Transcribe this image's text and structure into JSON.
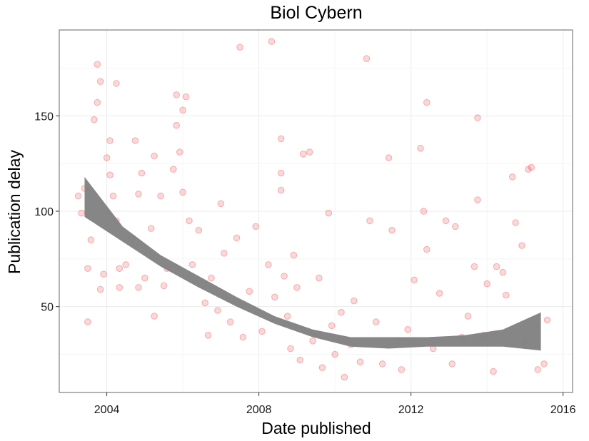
{
  "chart_data": {
    "type": "scatter",
    "title": "Biol Cybern",
    "xlabel": "Date published",
    "ylabel": "Publication delay",
    "x_ticks": [
      "2004",
      "2008",
      "2012",
      "2016"
    ],
    "y_ticks": [
      50,
      100,
      150
    ],
    "xlim": [
      "2002-10-01",
      "2016-04-01"
    ],
    "ylim": [
      5,
      195
    ],
    "grid": true,
    "point_color": "#e41a1c",
    "smooth_band_color": "#808080",
    "smooth_fit": {
      "x": [
        "2003-06",
        "2004-06",
        "2005-06",
        "2006-06",
        "2007-06",
        "2008-06",
        "2009-06",
        "2010-06",
        "2011-06",
        "2012-06",
        "2013-06",
        "2014-06",
        "2015-06"
      ],
      "lower": [
        97,
        84,
        71,
        60,
        50,
        41,
        34,
        29,
        28,
        29,
        29,
        29,
        27
      ],
      "upper": [
        118,
        92,
        77,
        66,
        55,
        45,
        38,
        34,
        34,
        34,
        35,
        38,
        47
      ]
    },
    "points": [
      [
        "2003-04",
        108
      ],
      [
        "2003-05",
        99
      ],
      [
        "2003-06",
        112
      ],
      [
        "2003-07",
        70
      ],
      [
        "2003-07",
        42
      ],
      [
        "2003-08",
        85
      ],
      [
        "2003-09",
        148
      ],
      [
        "2003-10",
        177
      ],
      [
        "2003-10",
        157
      ],
      [
        "2003-11",
        168
      ],
      [
        "2003-11",
        59
      ],
      [
        "2003-12",
        67
      ],
      [
        "2004-01",
        128
      ],
      [
        "2004-02",
        137
      ],
      [
        "2004-02",
        119
      ],
      [
        "2004-03",
        108
      ],
      [
        "2004-04",
        167
      ],
      [
        "2004-04",
        95
      ],
      [
        "2004-05",
        70
      ],
      [
        "2004-05",
        60
      ],
      [
        "2004-07",
        72
      ],
      [
        "2004-09",
        86
      ],
      [
        "2004-10",
        137
      ],
      [
        "2004-11",
        109
      ],
      [
        "2004-12",
        120
      ],
      [
        "2004-11",
        60
      ],
      [
        "2005-01",
        65
      ],
      [
        "2005-03",
        91
      ],
      [
        "2005-04",
        129
      ],
      [
        "2005-04",
        45
      ],
      [
        "2005-06",
        108
      ],
      [
        "2005-07",
        61
      ],
      [
        "2005-08",
        70
      ],
      [
        "2005-10",
        122
      ],
      [
        "2005-11",
        145
      ],
      [
        "2005-11",
        161
      ],
      [
        "2005-12",
        131
      ],
      [
        "2006-01",
        110
      ],
      [
        "2006-01",
        153
      ],
      [
        "2006-02",
        160
      ],
      [
        "2006-03",
        95
      ],
      [
        "2006-04",
        72
      ],
      [
        "2006-06",
        90
      ],
      [
        "2006-08",
        52
      ],
      [
        "2006-09",
        35
      ],
      [
        "2006-10",
        65
      ],
      [
        "2006-12",
        48
      ],
      [
        "2007-01",
        104
      ],
      [
        "2007-02",
        78
      ],
      [
        "2007-04",
        42
      ],
      [
        "2007-06",
        86
      ],
      [
        "2007-07",
        186
      ],
      [
        "2007-08",
        34
      ],
      [
        "2007-10",
        58
      ],
      [
        "2007-12",
        92
      ],
      [
        "2008-02",
        37
      ],
      [
        "2008-04",
        72
      ],
      [
        "2008-05",
        189
      ],
      [
        "2008-06",
        55
      ],
      [
        "2008-08",
        138
      ],
      [
        "2008-08",
        120
      ],
      [
        "2008-08",
        111
      ],
      [
        "2008-09",
        66
      ],
      [
        "2008-10",
        45
      ],
      [
        "2008-11",
        28
      ],
      [
        "2008-12",
        77
      ],
      [
        "2009-01",
        60
      ],
      [
        "2009-02",
        22
      ],
      [
        "2009-03",
        130
      ],
      [
        "2009-05",
        131
      ],
      [
        "2009-06",
        32
      ],
      [
        "2009-08",
        65
      ],
      [
        "2009-09",
        18
      ],
      [
        "2009-11",
        99
      ],
      [
        "2009-12",
        40
      ],
      [
        "2010-01",
        25
      ],
      [
        "2010-03",
        47
      ],
      [
        "2010-04",
        13
      ],
      [
        "2010-06",
        30
      ],
      [
        "2010-07",
        53
      ],
      [
        "2010-09",
        21
      ],
      [
        "2010-11",
        180
      ],
      [
        "2010-12",
        95
      ],
      [
        "2011-02",
        42
      ],
      [
        "2011-04",
        20
      ],
      [
        "2011-06",
        128
      ],
      [
        "2011-07",
        90
      ],
      [
        "2011-09",
        32
      ],
      [
        "2011-10",
        17
      ],
      [
        "2011-12",
        38
      ],
      [
        "2012-02",
        64
      ],
      [
        "2012-04",
        133
      ],
      [
        "2012-05",
        100
      ],
      [
        "2012-06",
        80
      ],
      [
        "2012-06",
        157
      ],
      [
        "2012-08",
        28
      ],
      [
        "2012-10",
        57
      ],
      [
        "2012-12",
        95
      ],
      [
        "2013-02",
        20
      ],
      [
        "2013-03",
        92
      ],
      [
        "2013-05",
        34
      ],
      [
        "2013-07",
        45
      ],
      [
        "2013-09",
        71
      ],
      [
        "2013-10",
        149
      ],
      [
        "2013-10",
        106
      ],
      [
        "2013-12",
        35
      ],
      [
        "2014-01",
        62
      ],
      [
        "2014-03",
        16
      ],
      [
        "2014-04",
        71
      ],
      [
        "2014-06",
        68
      ],
      [
        "2014-07",
        56
      ],
      [
        "2014-09",
        118
      ],
      [
        "2014-10",
        94
      ],
      [
        "2014-12",
        82
      ],
      [
        "2015-01",
        32
      ],
      [
        "2015-02",
        122
      ],
      [
        "2015-03",
        123
      ],
      [
        "2015-05",
        17
      ],
      [
        "2015-07",
        20
      ],
      [
        "2015-08",
        43
      ]
    ]
  }
}
